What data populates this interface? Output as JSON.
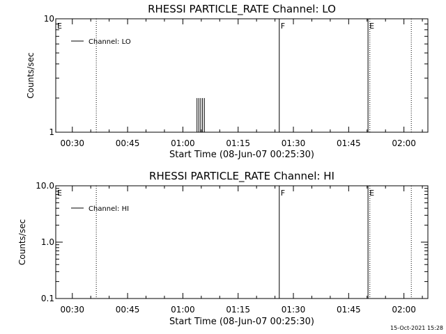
{
  "timestamp": "15-Oct-2021 15:28",
  "chart_data": [
    {
      "type": "line",
      "title": "RHESSI PARTICLE_RATE Channel: LO",
      "xlabel": "Start Time (08-Jun-07 00:25:30)",
      "ylabel": "Counts/sec",
      "yscale": "log",
      "xlim": [
        "00:25:30",
        "02:06:30"
      ],
      "ylim": [
        1,
        10
      ],
      "x_ticks": [
        "00:30",
        "00:45",
        "01:00",
        "01:15",
        "01:30",
        "01:45",
        "02:00"
      ],
      "y_ticks": [
        "1",
        "10"
      ],
      "legend": {
        "label": "Channel: LO",
        "position": "top-left"
      },
      "series": [
        {
          "name": "Channel: LO",
          "spikes": [
            {
              "x": "01:03:50",
              "y": 2
            },
            {
              "x": "01:04:20",
              "y": 2
            },
            {
              "x": "01:04:50",
              "y": 2
            },
            {
              "x": "01:05:20",
              "y": 2
            },
            {
              "x": "01:05:50",
              "y": 2
            }
          ]
        }
      ],
      "markers": [
        {
          "x": "00:25:30",
          "label": "E",
          "style": "dotted"
        },
        {
          "x": "00:36:30",
          "label": "",
          "style": "dotted"
        },
        {
          "x": "01:26:10",
          "label": "F",
          "style": "solid"
        },
        {
          "x": "01:50:15",
          "label": "E",
          "style": "solid"
        },
        {
          "x": "01:50:45",
          "label": "",
          "style": "dotted"
        },
        {
          "x": "02:02:00",
          "label": "",
          "style": "dotted"
        }
      ]
    },
    {
      "type": "line",
      "title": "RHESSI PARTICLE_RATE Channel: HI",
      "xlabel": "Start Time (08-Jun-07 00:25:30)",
      "ylabel": "Counts/sec",
      "yscale": "log",
      "xlim": [
        "00:25:30",
        "02:06:30"
      ],
      "ylim": [
        0.1,
        10
      ],
      "x_ticks": [
        "00:30",
        "00:45",
        "01:00",
        "01:15",
        "01:30",
        "01:45",
        "02:00"
      ],
      "y_ticks": [
        "0.1",
        "1.0",
        "10.0"
      ],
      "legend": {
        "label": "Channel: HI",
        "position": "top-left"
      },
      "series": [
        {
          "name": "Channel: HI",
          "spikes": []
        }
      ],
      "markers": [
        {
          "x": "00:25:30",
          "label": "E",
          "style": "dotted"
        },
        {
          "x": "00:36:30",
          "label": "",
          "style": "dotted"
        },
        {
          "x": "01:26:10",
          "label": "F",
          "style": "solid"
        },
        {
          "x": "01:50:15",
          "label": "E",
          "style": "solid"
        },
        {
          "x": "01:50:45",
          "label": "",
          "style": "dotted"
        },
        {
          "x": "02:02:00",
          "label": "",
          "style": "dotted"
        }
      ]
    }
  ]
}
